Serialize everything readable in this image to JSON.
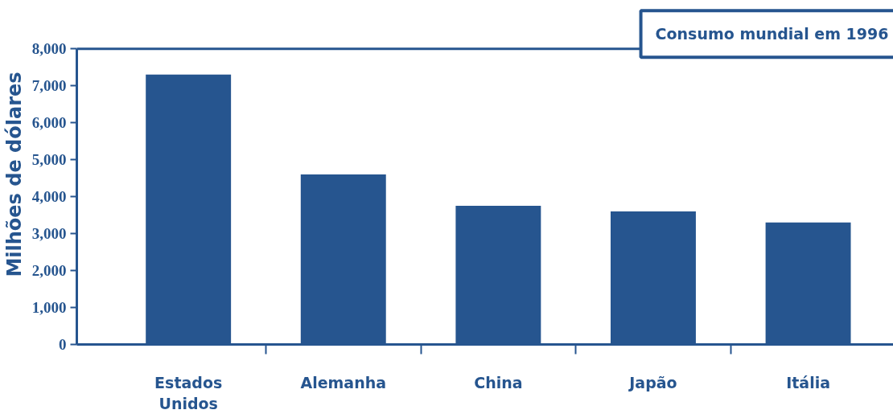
{
  "chart_data": {
    "type": "bar",
    "title": "Consumo mundial em 1996",
    "ylabel": "Milhões de dólares",
    "categories": [
      "Estados Unidos",
      "Alemanha",
      "China",
      "Japão",
      "Itália"
    ],
    "values": [
      7300,
      4600,
      3750,
      3600,
      3300
    ],
    "color": "#26558f",
    "ylim": [
      0,
      8000
    ],
    "yticks": [
      {
        "value": 0,
        "label": "0"
      },
      {
        "value": 1000,
        "label": "1,000"
      },
      {
        "value": 2000,
        "label": "2,000"
      },
      {
        "value": 3000,
        "label": "3,000"
      },
      {
        "value": 4000,
        "label": "4,000"
      },
      {
        "value": 5000,
        "label": "5,000"
      },
      {
        "value": 6000,
        "label": "6,000"
      },
      {
        "value": 7000,
        "label": "7,000"
      },
      {
        "value": 8000,
        "label": "8,000"
      }
    ],
    "grid": false
  }
}
